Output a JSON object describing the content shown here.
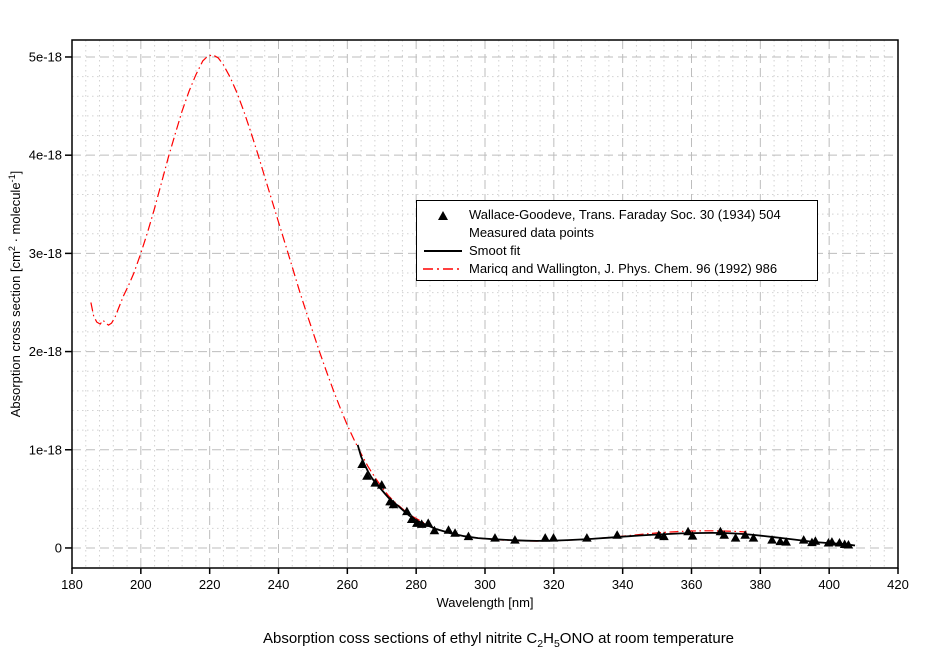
{
  "figure": {
    "caption_parts": {
      "t1": "Absorption coss sections of ethyl nitrite C",
      "sub1": "2",
      "t2": "H",
      "sub2": "5",
      "t3": "ONO at room temperature"
    },
    "y_label_parts": {
      "p1": "Absorption cross section [cm",
      "sup1": "2",
      "p2": " · molecule",
      "sup2": "-1",
      "p3": "]"
    }
  },
  "legend": {
    "entries": [
      {
        "marker": "triangle",
        "label": "Wallace-Goodeve,  Trans. Faraday Soc. 30 (1934) 504"
      },
      {
        "marker": "none",
        "label": "Measured data points"
      },
      {
        "marker": "solid-line",
        "label": "Smoot fit"
      },
      {
        "marker": "dash-dot-line",
        "label": "Maricq and Wallington,  J. Phys. Chem. 96 (1992) 986"
      }
    ]
  },
  "colors": {
    "background": "#ffffff",
    "axis": "#000000",
    "grid_major": "#bdbdbd",
    "grid_minor": "#d2d2d2",
    "fit_line": "#000000",
    "maricq_line": "#ff0000",
    "marker": "#000000"
  },
  "chart_data": {
    "type": "line",
    "title": "Absorption coss sections of ethyl nitrite C2H5ONO at room temperature",
    "xlabel": "Wavelength [nm]",
    "ylabel": "Absorption cross section [cm2 · molecule-1]",
    "xlim": [
      180,
      420
    ],
    "ylim": [
      0,
      5e-18
    ],
    "grid": "major dashed + minor dotted",
    "legend_position": "upper middle inside",
    "y_unit_multiplier": 1e-18,
    "x_axis": {
      "label": "Wavelength [nm]",
      "min": 180,
      "max": 420,
      "major_step": 20,
      "minor_step": 4,
      "ticks": [
        "180",
        "200",
        "220",
        "240",
        "260",
        "280",
        "300",
        "320",
        "340",
        "360",
        "380",
        "400",
        "420"
      ]
    },
    "y_axis": {
      "label": "Absorption cross section [cm2 · molecule-1]",
      "min_e18": 0,
      "max_e18": 5,
      "render_min_e18": -0.204,
      "render_max_e18": 5.173,
      "major_step_e18": 1,
      "minor_step_e18": 0.2,
      "ticks": [
        {
          "value_e18": 0,
          "label": "0"
        },
        {
          "value_e18": 1,
          "label": "1e-18"
        },
        {
          "value_e18": 2,
          "label": "2e-18"
        },
        {
          "value_e18": 3,
          "label": "3e-18"
        },
        {
          "value_e18": 4,
          "label": "4e-18"
        },
        {
          "value_e18": 5,
          "label": "5e-18"
        }
      ]
    },
    "series": [
      {
        "id": "maricq-wallington",
        "name": "Maricq and Wallington,  J. Phys. Chem. 96 (1992) 986",
        "style": "line",
        "marker": "none",
        "color": "#ff0000",
        "dash": "9 3.5 1.5 3.5",
        "width": 1.2,
        "points": [
          [
            185.5,
            2.5
          ],
          [
            186.3,
            2.36
          ],
          [
            187.2,
            2.3
          ],
          [
            188.2,
            2.28
          ],
          [
            189.0,
            2.32
          ],
          [
            189.8,
            2.29
          ],
          [
            190.6,
            2.27
          ],
          [
            191.5,
            2.29
          ],
          [
            192.5,
            2.35
          ],
          [
            193.5,
            2.44
          ],
          [
            195,
            2.57
          ],
          [
            196.5,
            2.68
          ],
          [
            198,
            2.8
          ],
          [
            200,
            3.0
          ],
          [
            202,
            3.22
          ],
          [
            204,
            3.46
          ],
          [
            206,
            3.72
          ],
          [
            208,
            3.98
          ],
          [
            210,
            4.22
          ],
          [
            212,
            4.45
          ],
          [
            214,
            4.65
          ],
          [
            216,
            4.82
          ],
          [
            218,
            4.96
          ],
          [
            219.5,
            5.01
          ],
          [
            221,
            5.02
          ],
          [
            222.5,
            4.99
          ],
          [
            224,
            4.92
          ],
          [
            226,
            4.79
          ],
          [
            228,
            4.63
          ],
          [
            230,
            4.44
          ],
          [
            232,
            4.23
          ],
          [
            234,
            4.01
          ],
          [
            236,
            3.78
          ],
          [
            238,
            3.55
          ],
          [
            240,
            3.32
          ],
          [
            242,
            3.09
          ],
          [
            244,
            2.86
          ],
          [
            246,
            2.63
          ],
          [
            248,
            2.41
          ],
          [
            250,
            2.2
          ],
          [
            252,
            1.99
          ],
          [
            254,
            1.79
          ],
          [
            256,
            1.6
          ],
          [
            258,
            1.42
          ],
          [
            260,
            1.25
          ],
          [
            262,
            1.1
          ],
          [
            264,
            0.96
          ],
          [
            266,
            0.83
          ],
          [
            268,
            0.72
          ],
          [
            270,
            0.62
          ],
          [
            272,
            0.53
          ],
          [
            274,
            0.46
          ],
          [
            276,
            0.4
          ],
          [
            278,
            0.34
          ],
          [
            280,
            0.3
          ],
          [
            282,
            0.26
          ],
          [
            284,
            0.22
          ],
          [
            286,
            0.19
          ],
          [
            288,
            0.17
          ],
          [
            290,
            0.15
          ],
          [
            292,
            0.135
          ],
          [
            294,
            0.12
          ],
          [
            296,
            0.11
          ],
          [
            298,
            0.1
          ],
          [
            300,
            0.093
          ],
          [
            303,
            0.085
          ],
          [
            306,
            0.079
          ],
          [
            309,
            0.075
          ],
          [
            312,
            0.072
          ],
          [
            315,
            0.07
          ],
          [
            318,
            0.072
          ],
          [
            321,
            0.075
          ],
          [
            324,
            0.079
          ],
          [
            327,
            0.084
          ],
          [
            330,
            0.09
          ],
          [
            333,
            0.098
          ],
          [
            336,
            0.107
          ],
          [
            339,
            0.117
          ],
          [
            342,
            0.127
          ],
          [
            345,
            0.137
          ],
          [
            348,
            0.147
          ],
          [
            351,
            0.156
          ],
          [
            354,
            0.163
          ],
          [
            357,
            0.169
          ],
          [
            360,
            0.173
          ],
          [
            363,
            0.175
          ],
          [
            366,
            0.175
          ],
          [
            369,
            0.173
          ],
          [
            372,
            0.17
          ],
          [
            374,
            0.167
          ],
          [
            376,
            0.163
          ]
        ]
      },
      {
        "id": "smoot-fit",
        "name": "Smoot fit",
        "style": "line",
        "marker": "none",
        "color": "#000000",
        "dash": "",
        "width": 1.8,
        "points": [
          [
            263,
            1.05
          ],
          [
            264,
            0.93
          ],
          [
            265,
            0.85
          ],
          [
            266,
            0.78
          ],
          [
            267,
            0.72
          ],
          [
            268,
            0.67
          ],
          [
            269,
            0.63
          ],
          [
            270,
            0.59
          ],
          [
            271,
            0.55
          ],
          [
            272,
            0.51
          ],
          [
            273,
            0.48
          ],
          [
            274,
            0.45
          ],
          [
            275,
            0.42
          ],
          [
            276,
            0.39
          ],
          [
            277,
            0.36
          ],
          [
            278,
            0.33
          ],
          [
            279,
            0.31
          ],
          [
            280,
            0.28
          ],
          [
            282,
            0.25
          ],
          [
            284,
            0.22
          ],
          [
            286,
            0.19
          ],
          [
            288,
            0.17
          ],
          [
            290,
            0.15
          ],
          [
            292,
            0.135
          ],
          [
            294,
            0.12
          ],
          [
            296,
            0.11
          ],
          [
            298,
            0.1
          ],
          [
            300,
            0.095
          ],
          [
            303,
            0.088
          ],
          [
            306,
            0.082
          ],
          [
            309,
            0.078
          ],
          [
            312,
            0.074
          ],
          [
            315,
            0.072
          ],
          [
            318,
            0.073
          ],
          [
            321,
            0.076
          ],
          [
            324,
            0.08
          ],
          [
            327,
            0.085
          ],
          [
            330,
            0.09
          ],
          [
            333,
            0.097
          ],
          [
            336,
            0.105
          ],
          [
            339,
            0.113
          ],
          [
            342,
            0.12
          ],
          [
            345,
            0.127
          ],
          [
            348,
            0.133
          ],
          [
            351,
            0.138
          ],
          [
            354,
            0.143
          ],
          [
            357,
            0.148
          ],
          [
            360,
            0.15
          ],
          [
            363,
            0.152
          ],
          [
            366,
            0.153
          ],
          [
            369,
            0.152
          ],
          [
            372,
            0.148
          ],
          [
            375,
            0.142
          ],
          [
            378,
            0.133
          ],
          [
            381,
            0.122
          ],
          [
            384,
            0.11
          ],
          [
            387,
            0.097
          ],
          [
            390,
            0.085
          ],
          [
            393,
            0.072
          ],
          [
            396,
            0.06
          ],
          [
            399,
            0.052
          ],
          [
            402,
            0.045
          ],
          [
            404,
            0.04
          ],
          [
            406,
            0.032
          ],
          [
            407.5,
            0.025
          ]
        ]
      },
      {
        "id": "wallace-goodeve-measured",
        "name": "Wallace-Goodeve,  Trans. Faraday Soc. 30 (1934) 504  Measured data points",
        "style": "scatter",
        "marker": "triangle",
        "color": "#000000",
        "points": [
          [
            264.3,
            0.85
          ],
          [
            265.7,
            0.73
          ],
          [
            268.1,
            0.66
          ],
          [
            270.0,
            0.64
          ],
          [
            272.4,
            0.47
          ],
          [
            273.4,
            0.44
          ],
          [
            277.3,
            0.37
          ],
          [
            278.7,
            0.29
          ],
          [
            280.2,
            0.25
          ],
          [
            281.6,
            0.24
          ],
          [
            283.5,
            0.25
          ],
          [
            285.3,
            0.175
          ],
          [
            289.4,
            0.18
          ],
          [
            291.3,
            0.15
          ],
          [
            295.2,
            0.115
          ],
          [
            302.9,
            0.1
          ],
          [
            308.7,
            0.08
          ],
          [
            317.5,
            0.1
          ],
          [
            319.9,
            0.1
          ],
          [
            329.6,
            0.1
          ],
          [
            338.4,
            0.13
          ],
          [
            350.5,
            0.13
          ],
          [
            352.0,
            0.115
          ],
          [
            359.0,
            0.165
          ],
          [
            360.3,
            0.12
          ],
          [
            368.4,
            0.165
          ],
          [
            369.5,
            0.13
          ],
          [
            372.8,
            0.1
          ],
          [
            375.6,
            0.13
          ],
          [
            378.0,
            0.1
          ],
          [
            383.4,
            0.08
          ],
          [
            385.8,
            0.065
          ],
          [
            387.5,
            0.06
          ],
          [
            392.6,
            0.08
          ],
          [
            395.0,
            0.055
          ],
          [
            396.0,
            0.068
          ],
          [
            399.8,
            0.05
          ],
          [
            400.8,
            0.06
          ],
          [
            403.0,
            0.05
          ],
          [
            404.5,
            0.035
          ],
          [
            405.6,
            0.03
          ]
        ]
      }
    ]
  }
}
